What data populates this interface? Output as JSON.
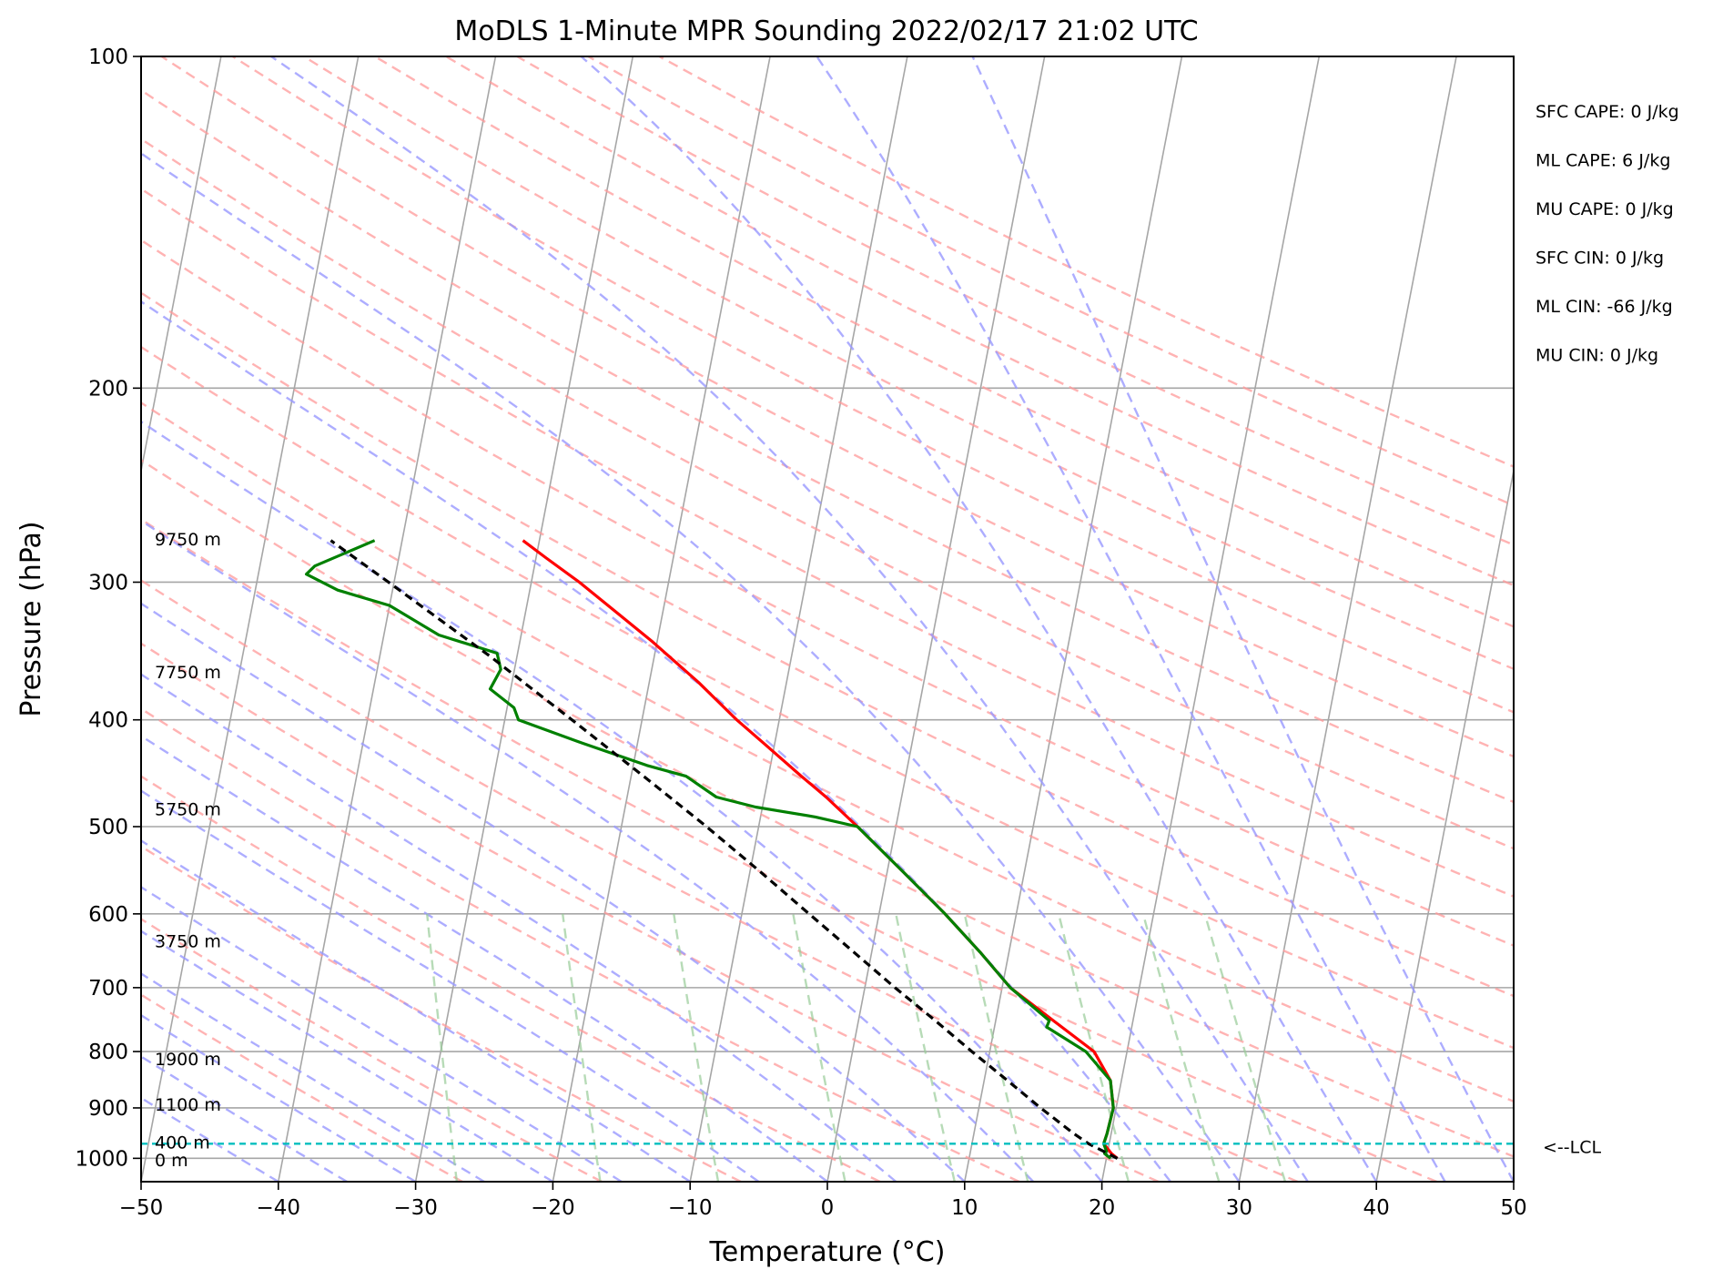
{
  "chart_data": {
    "type": "line",
    "title": "MoDLS 1-Minute MPR Sounding 2022/02/17 21:02 UTC",
    "xlabel": "Temperature (°C)",
    "ylabel": "Pressure (hPa)",
    "xlim": [
      -50,
      50
    ],
    "ylim": [
      1050,
      100
    ],
    "y_scale": "log",
    "skew": true,
    "grid": true,
    "x_ticks": [
      "−50",
      "−40",
      "−30",
      "−20",
      "−10",
      "0",
      "10",
      "20",
      "30",
      "40",
      "50"
    ],
    "x_tick_values": [
      -50,
      -40,
      -30,
      -20,
      -10,
      0,
      10,
      20,
      30,
      40,
      50
    ],
    "y_ticks": [
      "100",
      "200",
      "300",
      "400",
      "500",
      "600",
      "700",
      "800",
      "900",
      "1000"
    ],
    "y_tick_values": [
      100,
      200,
      300,
      400,
      500,
      600,
      700,
      800,
      900,
      1000
    ],
    "height_labels": [
      {
        "text": "9750 m",
        "p": 274
      },
      {
        "text": "7750 m",
        "p": 362
      },
      {
        "text": "5750 m",
        "p": 482
      },
      {
        "text": "3750 m",
        "p": 635
      },
      {
        "text": "1900 m",
        "p": 812
      },
      {
        "text": "1100 m",
        "p": 893
      },
      {
        "text": "400 m",
        "p": 967
      },
      {
        "text": "0 m",
        "p": 1003
      }
    ],
    "indices": [
      "SFC CAPE: 0 J/kg",
      "ML CAPE: 6 J/kg",
      "MU CAPE: 0 J/kg",
      "SFC CIN: 0 J/kg",
      "ML CIN: -66 J/kg",
      "MU CIN: 0 J/kg"
    ],
    "lcl": {
      "label": "<--LCL",
      "p": 970
    },
    "colors": {
      "temperature": "#ff0000",
      "dewpoint": "#008000",
      "parcel": "#000000",
      "lcl": "#00bfbf",
      "dry_adiabats": "#ff9999",
      "moist_adiabats": "#9999ff",
      "mixing_ratio": "#99cc99",
      "isotherms": "#a6a6a6"
    },
    "series": [
      {
        "key": "temperature",
        "points": [
          [
            1000,
            20.8
          ],
          [
            990,
            20.3
          ],
          [
            970,
            19.6
          ],
          [
            950,
            19.7
          ],
          [
            900,
            19.8
          ],
          [
            850,
            19.2
          ],
          [
            800,
            17.6
          ],
          [
            750,
            14.2
          ],
          [
            700,
            10.6
          ],
          [
            650,
            7.9
          ],
          [
            600,
            4.8
          ],
          [
            550,
            1.2
          ],
          [
            500,
            -2.8
          ],
          [
            470,
            -5.5
          ],
          [
            450,
            -7.6
          ],
          [
            420,
            -10.8
          ],
          [
            400,
            -13.1
          ],
          [
            370,
            -16.4
          ],
          [
            340,
            -20.3
          ],
          [
            320,
            -23.3
          ],
          [
            300,
            -26.5
          ],
          [
            285,
            -29.3
          ],
          [
            275,
            -31.2
          ]
        ]
      },
      {
        "key": "dewpoint",
        "points": [
          [
            1000,
            20.3
          ],
          [
            990,
            19.8
          ],
          [
            985,
            19.9
          ],
          [
            970,
            19.6
          ],
          [
            950,
            19.7
          ],
          [
            900,
            19.8
          ],
          [
            850,
            19.2
          ],
          [
            800,
            17.0
          ],
          [
            760,
            13.8
          ],
          [
            750,
            13.9
          ],
          [
            700,
            10.6
          ],
          [
            650,
            7.9
          ],
          [
            600,
            4.8
          ],
          [
            550,
            1.2
          ],
          [
            500,
            -2.8
          ],
          [
            490,
            -6.0
          ],
          [
            480,
            -10.5
          ],
          [
            470,
            -13.5
          ],
          [
            450,
            -16.0
          ],
          [
            440,
            -19.0
          ],
          [
            420,
            -24.0
          ],
          [
            400,
            -29.0
          ],
          [
            390,
            -29.5
          ],
          [
            375,
            -31.5
          ],
          [
            360,
            -31.0
          ],
          [
            348,
            -31.5
          ],
          [
            335,
            -36.0
          ],
          [
            315,
            -40.0
          ],
          [
            305,
            -44.0
          ],
          [
            295,
            -46.5
          ],
          [
            290,
            -46.0
          ],
          [
            275,
            -42.0
          ]
        ]
      },
      {
        "key": "parcel",
        "points": [
          [
            1000,
            20.8
          ],
          [
            970,
            18.5
          ],
          [
            950,
            17.3
          ],
          [
            900,
            14.5
          ],
          [
            850,
            11.7
          ],
          [
            800,
            8.7
          ],
          [
            750,
            5.6
          ],
          [
            700,
            2.2
          ],
          [
            650,
            -1.3
          ],
          [
            600,
            -5.1
          ],
          [
            550,
            -9.2
          ],
          [
            500,
            -13.8
          ],
          [
            450,
            -19.1
          ],
          [
            400,
            -25.1
          ],
          [
            350,
            -32.0
          ],
          [
            300,
            -40.4
          ],
          [
            275,
            -45.2
          ]
        ]
      }
    ]
  }
}
